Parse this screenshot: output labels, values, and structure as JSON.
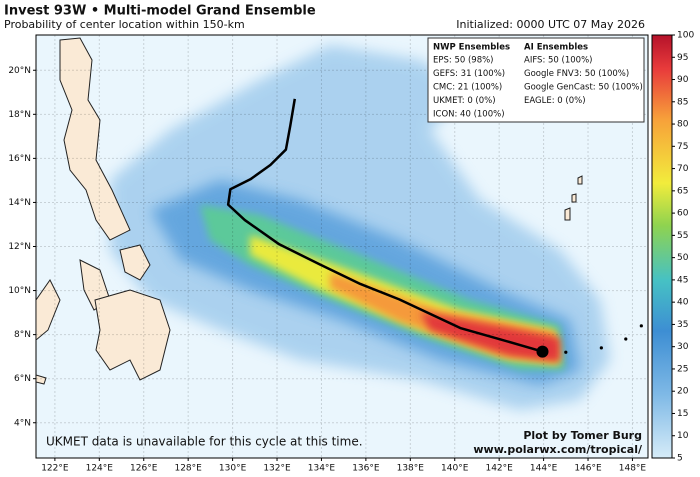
{
  "header": {
    "title": "Invest 93W • Multi-model Grand Ensemble",
    "subtitle": "Probability of center location within 150-km",
    "initialized": "Initialized: 0000 UTC 07 May 2026"
  },
  "legend": {
    "nwp_title": "NWP Ensembles",
    "nwp": [
      "EPS: 50 (98%)",
      "GEFS: 31 (100%)",
      "CMC: 21 (100%)",
      "UKMET: 0 (0%)",
      "ICON: 40 (100%)"
    ],
    "ai_title": "AI Ensembles",
    "ai": [
      "AIFS: 50 (100%)",
      "Google FNV3: 50 (100%)",
      "Google GenCast: 50 (100%)",
      "EAGLE: 0 (0%)"
    ]
  },
  "notes": {
    "unavailable": "UKMET data is unavailable for this cycle at this time.",
    "credit": "Plot by Tomer Burg",
    "url": "www.polarwx.com/tropical/"
  },
  "map": {
    "xlim": [
      121.15,
      148.7
    ],
    "ylim": [
      2.4,
      21.6
    ],
    "xticks": [
      {
        "value": 122,
        "label": "122°E"
      },
      {
        "value": 124,
        "label": "124°E"
      },
      {
        "value": 126,
        "label": "126°E"
      },
      {
        "value": 128,
        "label": "128°E"
      },
      {
        "value": 130,
        "label": "130°E"
      },
      {
        "value": 132,
        "label": "132°E"
      },
      {
        "value": 134,
        "label": "134°E"
      },
      {
        "value": 136,
        "label": "136°E"
      },
      {
        "value": 138,
        "label": "138°E"
      },
      {
        "value": 140,
        "label": "140°E"
      },
      {
        "value": 142,
        "label": "142°E"
      },
      {
        "value": 144,
        "label": "144°E"
      },
      {
        "value": 146,
        "label": "146°E"
      },
      {
        "value": 148,
        "label": "148°E"
      }
    ],
    "yticks": [
      {
        "value": 4,
        "label": "4°N"
      },
      {
        "value": 6,
        "label": "6°N"
      },
      {
        "value": 8,
        "label": "8°N"
      },
      {
        "value": 10,
        "label": "10°N"
      },
      {
        "value": 12,
        "label": "12°N"
      },
      {
        "value": 14,
        "label": "14°N"
      },
      {
        "value": 16,
        "label": "16°N"
      },
      {
        "value": 18,
        "label": "18°N"
      },
      {
        "value": 20,
        "label": "20°N"
      }
    ],
    "track": {
      "lon": [
        143.95,
        142.0,
        140.25,
        137.5,
        135.75,
        133.9,
        132.1,
        130.55,
        129.8,
        129.9,
        130.8,
        131.7,
        132.4,
        132.6,
        132.8
      ],
      "lat": [
        7.23,
        7.8,
        8.3,
        9.6,
        10.3,
        11.2,
        12.1,
        13.2,
        13.9,
        14.6,
        15.05,
        15.7,
        16.4,
        17.5,
        18.7
      ]
    },
    "past_track": {
      "lon": [
        145.0,
        146.6,
        147.7,
        148.4
      ],
      "lat": [
        7.2,
        7.4,
        7.8,
        8.4
      ]
    }
  },
  "colorbar": {
    "clim": [
      5,
      100
    ],
    "ticks": [
      5,
      10,
      15,
      20,
      25,
      30,
      35,
      40,
      45,
      50,
      55,
      60,
      65,
      70,
      75,
      80,
      85,
      90,
      95,
      100
    ]
  }
}
